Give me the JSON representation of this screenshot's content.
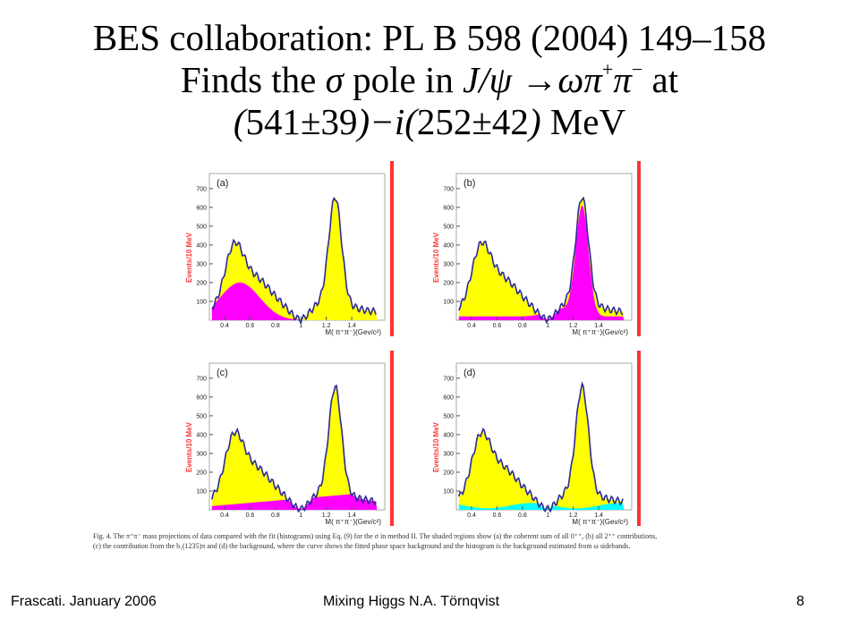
{
  "slide": {
    "title_line1": "BES collaboration: PL B 598 (2004) 149–158",
    "title_line2_pre": "Finds the ",
    "title_sigma": "σ",
    "title_line2_mid": " pole in ",
    "title_jpsi": "J/ψ →ωπ",
    "title_plus": "+",
    "title_pi": "π",
    "title_minus": "−",
    "title_at": " at",
    "title_line3_a": "(",
    "title_line3_b": "541±39",
    "title_line3_c": ")−i(",
    "title_line3_d": "252±42",
    "title_line3_e": ")",
    "title_line3_unit": " MeV"
  },
  "figure": {
    "panels": [
      {
        "label": "(a)"
      },
      {
        "label": "(b)"
      },
      {
        "label": "(c)"
      },
      {
        "label": "(d)"
      }
    ],
    "ylabel": "Events/10 MeV",
    "xlabel": "M( π⁺π⁻)(Gev/c²)",
    "yticks": [
      "700",
      "600",
      "500",
      "400",
      "300",
      "200",
      "100"
    ],
    "xticks": [
      "0.4",
      "0.6",
      "0.8",
      "1",
      "1.2",
      "1.4"
    ],
    "colors": {
      "data": "#2a2a9a",
      "fit": "#ffff00",
      "sigma": "#ff00ff",
      "background": "#00ffff",
      "axis": "#ff3333"
    },
    "caption": "Fig. 4. The π⁺π⁻ mass projections of data compared with the fit (histograms) using Eq. (9) for the σ in method II. The shaded regions show (a) the coherent sum of all 0⁺⁺, (b) all 2⁺⁺ contributions, (c) the contribution from the b₁(1235)π and (d) the background, where the curve shows the fitted phase space background and the histogram is the background estimated from ω sidebands."
  },
  "footer": {
    "left": "Frascati.  January 2006",
    "middle": "Mixing Higgs        N.A. Törnqvist",
    "page": "8"
  }
}
